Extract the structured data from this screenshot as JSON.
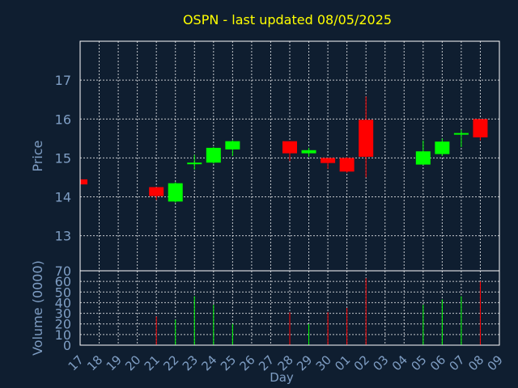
{
  "chart_data": {
    "type": "candlestick",
    "title": "OSPN - last updated 08/05/2025",
    "xlabel": "Day",
    "price_ylabel": "Price",
    "volume_ylabel": "Volume (0000)",
    "price_ylim": [
      12.1,
      18.0
    ],
    "price_ticks": [
      13,
      14,
      15,
      16,
      17
    ],
    "volume_ylim": [
      0,
      70
    ],
    "volume_ticks": [
      0,
      10,
      20,
      30,
      40,
      50,
      60,
      70
    ],
    "grid": true,
    "colors": {
      "background": "#0f1e30",
      "title": "#ffff00",
      "axis_text": "#7f9ec4",
      "frame": "#ffffff",
      "up": "#00ff00",
      "down": "#ff0000"
    },
    "days": [
      "17",
      "18",
      "19",
      "20",
      "21",
      "22",
      "23",
      "24",
      "25",
      "26",
      "27",
      "28",
      "29",
      "30",
      "01",
      "02",
      "03",
      "04",
      "05",
      "06",
      "07",
      "08",
      "09"
    ],
    "candles": [
      {
        "day": "17",
        "open": 14.45,
        "high": 14.45,
        "low": 14.3,
        "close": 14.32,
        "volume": 0
      },
      {
        "day": "21",
        "open": 14.25,
        "high": 14.25,
        "low": 13.92,
        "close": 14.02,
        "volume": 27
      },
      {
        "day": "22",
        "open": 13.88,
        "high": 14.38,
        "low": 13.85,
        "close": 14.35,
        "volume": 24
      },
      {
        "day": "23",
        "open": 14.84,
        "high": 15.08,
        "low": 14.7,
        "close": 14.88,
        "volume": 46
      },
      {
        "day": "24",
        "open": 14.88,
        "high": 15.28,
        "low": 14.85,
        "close": 15.26,
        "volume": 38
      },
      {
        "day": "25",
        "open": 15.22,
        "high": 15.46,
        "low": 15.05,
        "close": 15.43,
        "volume": 20
      },
      {
        "day": "28",
        "open": 15.43,
        "high": 15.43,
        "low": 14.92,
        "close": 15.12,
        "volume": 31
      },
      {
        "day": "29",
        "open": 15.12,
        "high": 15.26,
        "low": 15.03,
        "close": 15.2,
        "volume": 20
      },
      {
        "day": "30",
        "open": 15.0,
        "high": 15.0,
        "low": 14.72,
        "close": 14.87,
        "volume": 31
      },
      {
        "day": "01",
        "open": 15.0,
        "high": 15.02,
        "low": 14.62,
        "close": 14.65,
        "volume": 35
      },
      {
        "day": "02",
        "open": 15.98,
        "high": 16.58,
        "low": 14.5,
        "close": 15.03,
        "volume": 63
      },
      {
        "day": "05",
        "open": 14.83,
        "high": 15.45,
        "low": 14.82,
        "close": 15.17,
        "volume": 38
      },
      {
        "day": "06",
        "open": 15.1,
        "high": 15.5,
        "low": 15.05,
        "close": 15.42,
        "volume": 43
      },
      {
        "day": "07",
        "open": 15.6,
        "high": 15.72,
        "low": 15.28,
        "close": 15.64,
        "volume": 46
      },
      {
        "day": "08",
        "open": 16.0,
        "high": 16.0,
        "low": 15.45,
        "close": 15.53,
        "volume": 60
      }
    ]
  }
}
